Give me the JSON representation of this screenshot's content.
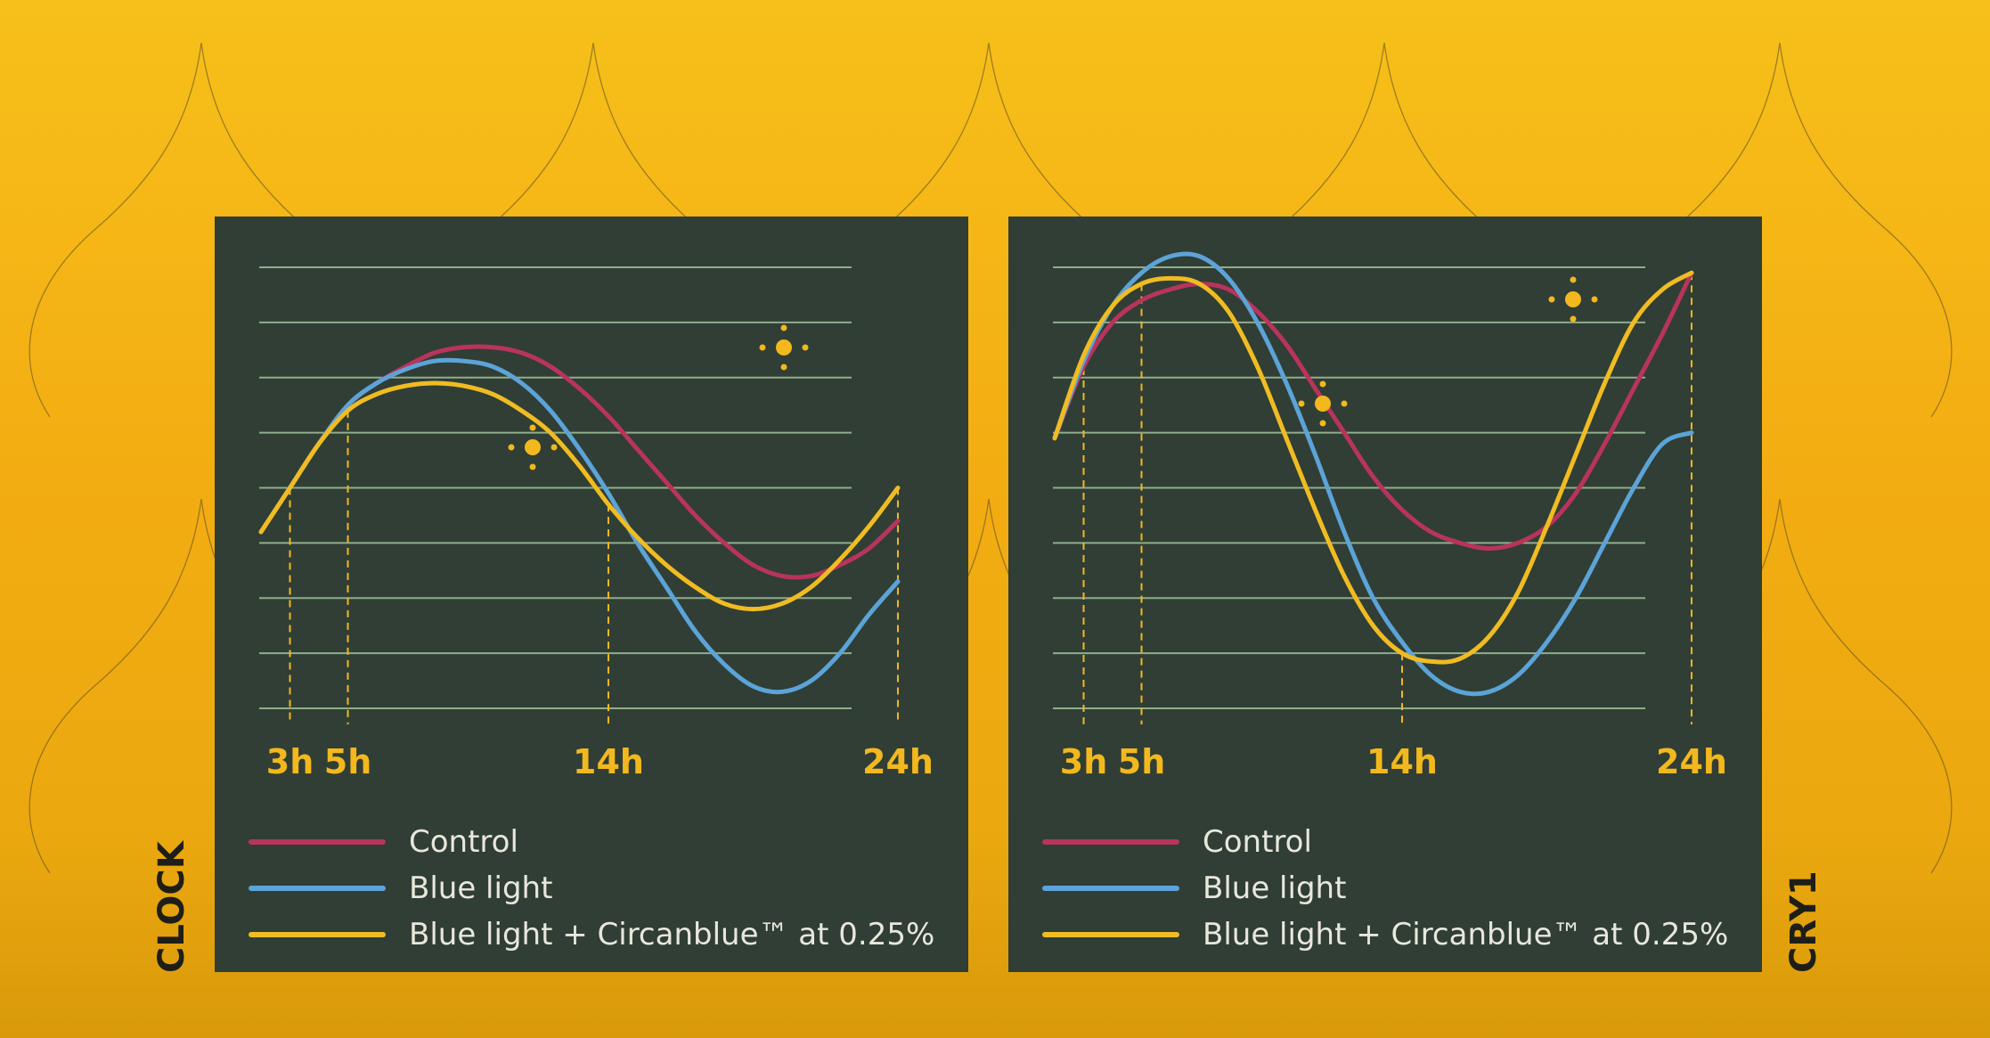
{
  "colors": {
    "control": "#b8345c",
    "blue_light": "#5ca3d8",
    "blue_light_circanblue": "#f0bc22",
    "panel_bg": "#303e35",
    "grid": "#8fae8a",
    "accent": "#f2b81e"
  },
  "chart_data": [
    {
      "type": "line",
      "side_label": "CLOCK",
      "x_ticks": [
        3,
        5,
        14,
        24
      ],
      "x_tick_labels": [
        "3h",
        "5h",
        "14h",
        "24h"
      ],
      "xlim": [
        2,
        24
      ],
      "ylim": [
        0,
        8
      ],
      "grid": true,
      "legend_position": "bottom",
      "series": [
        {
          "name": "Control",
          "key": "control",
          "x": [
            2,
            3,
            4,
            5,
            6,
            7,
            8,
            9,
            10,
            11,
            12,
            13,
            14,
            15,
            16,
            17,
            18,
            19,
            20,
            21,
            22,
            23,
            24
          ],
          "y": [
            3.2,
            4.0,
            4.8,
            5.5,
            5.9,
            6.2,
            6.45,
            6.55,
            6.55,
            6.45,
            6.2,
            5.8,
            5.3,
            4.7,
            4.1,
            3.5,
            3.0,
            2.6,
            2.4,
            2.4,
            2.6,
            2.9,
            3.4
          ]
        },
        {
          "name": "Blue light",
          "key": "blue_light",
          "x": [
            2,
            3,
            4,
            5,
            6,
            7,
            8,
            9,
            10,
            11,
            12,
            13,
            14,
            15,
            16,
            17,
            18,
            19,
            20,
            21,
            22,
            23,
            24
          ],
          "y": [
            3.2,
            4.0,
            4.8,
            5.5,
            5.9,
            6.15,
            6.3,
            6.3,
            6.2,
            5.9,
            5.4,
            4.7,
            3.9,
            3.0,
            2.2,
            1.4,
            0.8,
            0.4,
            0.3,
            0.5,
            1.0,
            1.7,
            2.3
          ]
        },
        {
          "name": "Blue light + Circanblue™ at 0.25%",
          "key": "blue_light_circanblue",
          "x": [
            2,
            3,
            4,
            5,
            6,
            7,
            8,
            9,
            10,
            11,
            12,
            13,
            14,
            15,
            16,
            17,
            18,
            19,
            20,
            21,
            22,
            23,
            24
          ],
          "y": [
            3.2,
            4.0,
            4.8,
            5.4,
            5.7,
            5.85,
            5.9,
            5.85,
            5.7,
            5.4,
            5.0,
            4.4,
            3.7,
            3.1,
            2.6,
            2.2,
            1.9,
            1.8,
            1.9,
            2.2,
            2.7,
            3.3,
            4.0
          ]
        }
      ]
    },
    {
      "type": "line",
      "side_label": "CRY1",
      "x_ticks": [
        3,
        5,
        14,
        24
      ],
      "x_tick_labels": [
        "3h",
        "5h",
        "14h",
        "24h"
      ],
      "xlim": [
        2,
        24
      ],
      "ylim": [
        0,
        8
      ],
      "grid": true,
      "legend_position": "bottom",
      "series": [
        {
          "name": "Control",
          "key": "control",
          "x": [
            2,
            3,
            4,
            5,
            6,
            7,
            8,
            9,
            10,
            11,
            12,
            13,
            14,
            15,
            16,
            17,
            18,
            19,
            20,
            21,
            22,
            23,
            24
          ],
          "y": [
            4.9,
            6.2,
            7.0,
            7.4,
            7.6,
            7.7,
            7.6,
            7.2,
            6.6,
            5.8,
            5.0,
            4.2,
            3.6,
            3.2,
            3.0,
            2.9,
            3.0,
            3.3,
            3.9,
            4.8,
            5.8,
            6.8,
            7.9
          ]
        },
        {
          "name": "Blue light",
          "key": "blue_light",
          "x": [
            2,
            3,
            4,
            5,
            6,
            7,
            8,
            9,
            10,
            11,
            12,
            13,
            14,
            15,
            16,
            17,
            18,
            19,
            20,
            21,
            22,
            23,
            24
          ],
          "y": [
            4.9,
            6.3,
            7.3,
            7.9,
            8.2,
            8.2,
            7.8,
            7.0,
            5.9,
            4.6,
            3.2,
            2.0,
            1.2,
            0.6,
            0.3,
            0.3,
            0.6,
            1.2,
            2.0,
            3.0,
            4.0,
            4.8,
            5.0
          ]
        },
        {
          "name": "Blue light + Circanblue™ at 0.25%",
          "key": "blue_light_circanblue",
          "x": [
            2,
            3,
            4,
            5,
            6,
            7,
            8,
            9,
            10,
            11,
            12,
            13,
            14,
            15,
            16,
            17,
            18,
            19,
            20,
            21,
            22,
            23,
            24
          ],
          "y": [
            4.9,
            6.4,
            7.3,
            7.7,
            7.8,
            7.7,
            7.2,
            6.2,
            4.9,
            3.6,
            2.4,
            1.5,
            1.0,
            0.85,
            0.9,
            1.3,
            2.1,
            3.3,
            4.6,
            5.9,
            7.0,
            7.6,
            7.9
          ]
        }
      ]
    }
  ]
}
